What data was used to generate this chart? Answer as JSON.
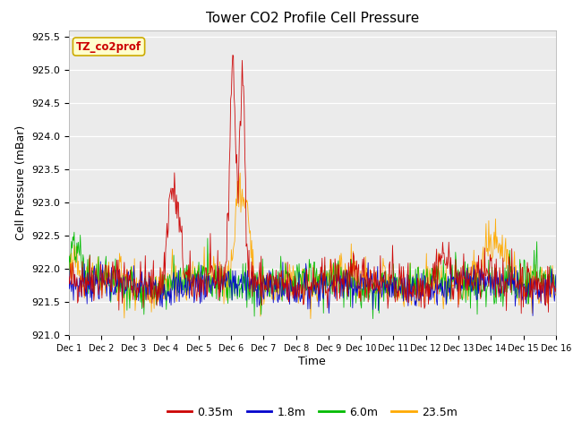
{
  "title": "Tower CO2 Profile Cell Pressure",
  "xlabel": "Time",
  "ylabel": "Cell Pressure (mBar)",
  "ylim": [
    921.0,
    925.6
  ],
  "yticks": [
    921.0,
    921.5,
    922.0,
    922.5,
    923.0,
    923.5,
    924.0,
    924.5,
    925.0,
    925.5
  ],
  "series_colors": {
    "0.35m": "#cc0000",
    "1.8m": "#0000cc",
    "6.0m": "#00bb00",
    "23.5m": "#ffaa00"
  },
  "series_labels": [
    "0.35m",
    "1.8m",
    "6.0m",
    "23.5m"
  ],
  "n_days": 15,
  "points_per_day": 48,
  "base_pressure": 921.8,
  "annotation_text": "TZ_co2prof",
  "annotation_bg": "#ffffcc",
  "annotation_border": "#ccaa00",
  "bg_color": "#ebebeb",
  "grid_color": "#ffffff"
}
